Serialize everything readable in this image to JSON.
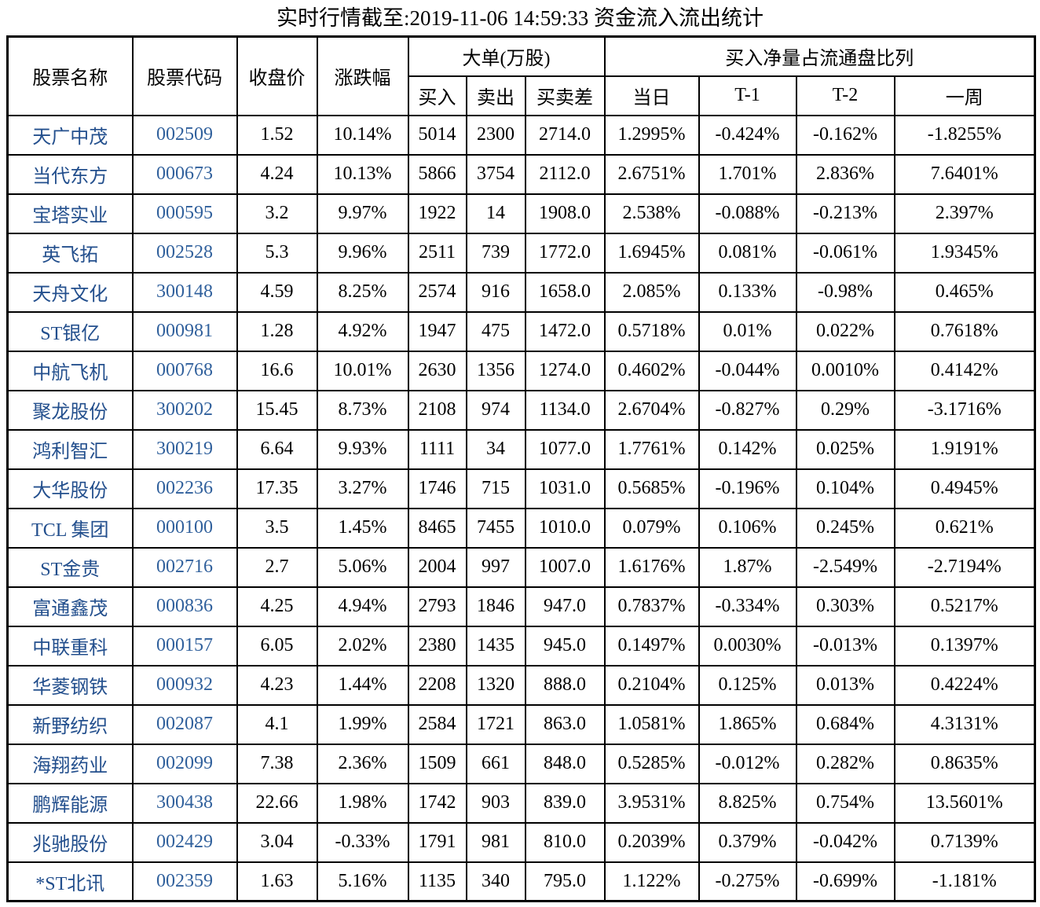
{
  "title": "实时行情截至:2019-11-06 14:59:33 资金流入流出统计",
  "colors": {
    "stock_name_blue": "#234f8d",
    "stock_code_blue": "#30609c",
    "text": "#000000",
    "border": "#000000",
    "background": "#ffffff"
  },
  "table": {
    "headers": {
      "name": "股票名称",
      "code": "股票代码",
      "close": "收盘价",
      "change": "涨跌幅",
      "big_order_group": "大单(万股)",
      "buy": "买入",
      "sell": "卖出",
      "diff": "买卖差",
      "net_ratio_group": "买入净量占流通盘比列",
      "today": "当日",
      "t1": "T-1",
      "t2": "T-2",
      "week": "一周"
    },
    "rows": [
      [
        "天广中茂",
        "002509",
        "1.52",
        "10.14%",
        "5014",
        "2300",
        "2714.0",
        "1.2995%",
        "-0.424%",
        "-0.162%",
        "-1.8255%"
      ],
      [
        "当代东方",
        "000673",
        "4.24",
        "10.13%",
        "5866",
        "3754",
        "2112.0",
        "2.6751%",
        "1.701%",
        "2.836%",
        "7.6401%"
      ],
      [
        "宝塔实业",
        "000595",
        "3.2",
        "9.97%",
        "1922",
        "14",
        "1908.0",
        "2.538%",
        "-0.088%",
        "-0.213%",
        "2.397%"
      ],
      [
        "英飞拓",
        "002528",
        "5.3",
        "9.96%",
        "2511",
        "739",
        "1772.0",
        "1.6945%",
        "0.081%",
        "-0.061%",
        "1.9345%"
      ],
      [
        "天舟文化",
        "300148",
        "4.59",
        "8.25%",
        "2574",
        "916",
        "1658.0",
        "2.085%",
        "0.133%",
        "-0.98%",
        "0.465%"
      ],
      [
        "ST银亿",
        "000981",
        "1.28",
        "4.92%",
        "1947",
        "475",
        "1472.0",
        "0.5718%",
        "0.01%",
        "0.022%",
        "0.7618%"
      ],
      [
        "中航飞机",
        "000768",
        "16.6",
        "10.01%",
        "2630",
        "1356",
        "1274.0",
        "0.4602%",
        "-0.044%",
        "0.0010%",
        "0.4142%"
      ],
      [
        "聚龙股份",
        "300202",
        "15.45",
        "8.73%",
        "2108",
        "974",
        "1134.0",
        "2.6704%",
        "-0.827%",
        "0.29%",
        "-3.1716%"
      ],
      [
        "鸿利智汇",
        "300219",
        "6.64",
        "9.93%",
        "1111",
        "34",
        "1077.0",
        "1.7761%",
        "0.142%",
        "0.025%",
        "1.9191%"
      ],
      [
        "大华股份",
        "002236",
        "17.35",
        "3.27%",
        "1746",
        "715",
        "1031.0",
        "0.5685%",
        "-0.196%",
        "0.104%",
        "0.4945%"
      ],
      [
        "TCL 集团",
        "000100",
        "3.5",
        "1.45%",
        "8465",
        "7455",
        "1010.0",
        "0.079%",
        "0.106%",
        "0.245%",
        "0.621%"
      ],
      [
        "ST金贵",
        "002716",
        "2.7",
        "5.06%",
        "2004",
        "997",
        "1007.0",
        "1.6176%",
        "1.87%",
        "-2.549%",
        "-2.7194%"
      ],
      [
        "富通鑫茂",
        "000836",
        "4.25",
        "4.94%",
        "2793",
        "1846",
        "947.0",
        "0.7837%",
        "-0.334%",
        "0.303%",
        "0.5217%"
      ],
      [
        "中联重科",
        "000157",
        "6.05",
        "2.02%",
        "2380",
        "1435",
        "945.0",
        "0.1497%",
        "0.0030%",
        "-0.013%",
        "0.1397%"
      ],
      [
        "华菱钢铁",
        "000932",
        "4.23",
        "1.44%",
        "2208",
        "1320",
        "888.0",
        "0.2104%",
        "0.125%",
        "0.013%",
        "0.4224%"
      ],
      [
        "新野纺织",
        "002087",
        "4.1",
        "1.99%",
        "2584",
        "1721",
        "863.0",
        "1.0581%",
        "1.865%",
        "0.684%",
        "4.3131%"
      ],
      [
        "海翔药业",
        "002099",
        "7.38",
        "2.36%",
        "1509",
        "661",
        "848.0",
        "0.5285%",
        "-0.012%",
        "0.282%",
        "0.8635%"
      ],
      [
        "鹏辉能源",
        "300438",
        "22.66",
        "1.98%",
        "1742",
        "903",
        "839.0",
        "3.9531%",
        "8.825%",
        "0.754%",
        "13.5601%"
      ],
      [
        "兆驰股份",
        "002429",
        "3.04",
        "-0.33%",
        "1791",
        "981",
        "810.0",
        "0.2039%",
        "0.379%",
        "-0.042%",
        "0.7139%"
      ],
      [
        "*ST北讯",
        "002359",
        "1.63",
        "5.16%",
        "1135",
        "340",
        "795.0",
        "1.122%",
        "-0.275%",
        "-0.699%",
        "-1.181%"
      ]
    ]
  }
}
